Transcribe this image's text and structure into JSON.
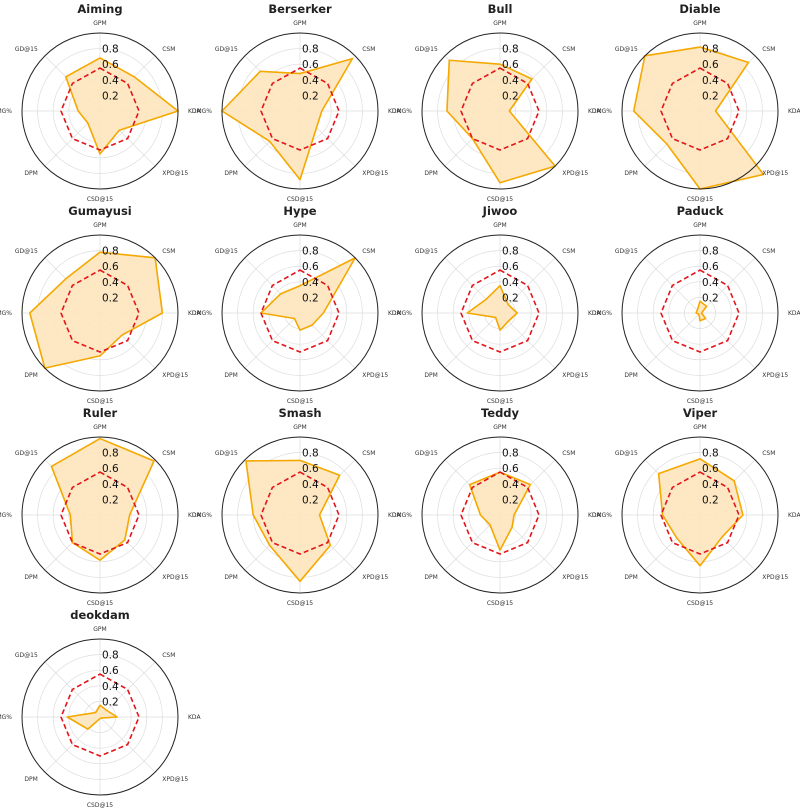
{
  "chart_data": {
    "type": "radar",
    "axes": [
      "GPM",
      "CSM",
      "KDA",
      "XPD@15",
      "CSD@15",
      "DPM",
      "DMG%",
      "GD@15"
    ],
    "r_ticks": [
      "0.2",
      "0.4",
      "0.6",
      "0.8"
    ],
    "rlim": [
      0,
      1
    ],
    "grid": true,
    "colors": {
      "player_fill": "#fde5bd",
      "player_line": "#f5a800",
      "baseline_line": "#e3151a"
    },
    "baseline": [
      0.55,
      0.5,
      0.5,
      0.5,
      0.5,
      0.5,
      0.5,
      0.5
    ],
    "charts": [
      {
        "title": "Aiming",
        "values": [
          0.68,
          0.62,
          1.0,
          0.35,
          0.55,
          0.22,
          0.28,
          0.62
        ]
      },
      {
        "title": "Berserker",
        "values": [
          0.48,
          0.95,
          0.28,
          0.3,
          0.88,
          0.55,
          1.0,
          0.72
        ]
      },
      {
        "title": "Bull",
        "values": [
          0.6,
          0.58,
          0.12,
          1.0,
          0.92,
          0.5,
          0.68,
          0.92
        ]
      },
      {
        "title": "Diable",
        "values": [
          0.82,
          0.88,
          0.2,
          1.15,
          1.0,
          0.6,
          0.85,
          1.0
        ]
      },
      {
        "title": "Gumayusi",
        "values": [
          0.78,
          1.0,
          0.8,
          0.4,
          0.55,
          1.0,
          0.9,
          0.62
        ]
      },
      {
        "title": "Hype",
        "values": [
          0.35,
          1.0,
          0.3,
          0.22,
          0.22,
          0.1,
          0.5,
          0.35
        ]
      },
      {
        "title": "Jiwoo",
        "values": [
          0.35,
          0.15,
          0.22,
          0.15,
          0.22,
          0.08,
          0.42,
          0.25
        ]
      },
      {
        "title": "Paduck",
        "values": [
          0.15,
          0.12,
          0.02,
          0.1,
          0.1,
          0.02,
          0.05,
          0.05
        ]
      },
      {
        "title": "Ruler",
        "values": [
          0.98,
          0.98,
          0.38,
          0.45,
          0.58,
          0.5,
          0.38,
          0.88
        ]
      },
      {
        "title": "Smash",
        "values": [
          0.7,
          0.72,
          0.25,
          0.55,
          0.85,
          0.55,
          0.6,
          0.98
        ]
      },
      {
        "title": "Teddy",
        "values": [
          0.55,
          0.55,
          0.18,
          0.22,
          0.45,
          0.18,
          0.25,
          0.55
        ]
      },
      {
        "title": "Viper",
        "values": [
          0.72,
          0.62,
          0.55,
          0.4,
          0.65,
          0.42,
          0.48,
          0.75
        ]
      },
      {
        "title": "deokdam",
        "values": [
          0.15,
          0.12,
          0.22,
          0.02,
          0.02,
          0.22,
          0.42,
          0.08
        ]
      }
    ]
  }
}
